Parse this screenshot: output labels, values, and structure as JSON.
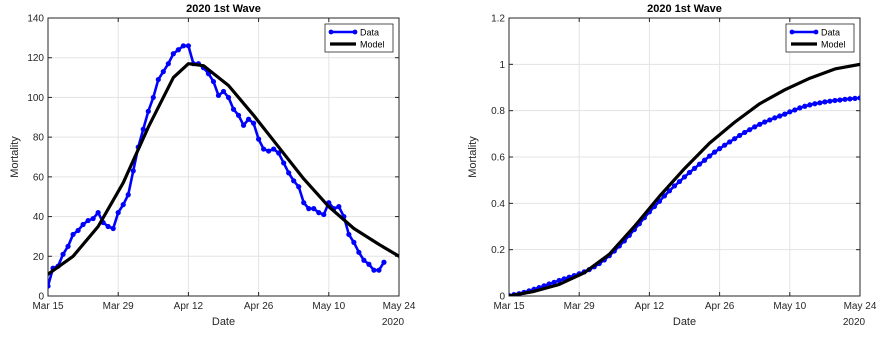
{
  "chart_data": [
    {
      "type": "line",
      "title": "2020 1st Wave",
      "xlabel": "Date",
      "ylabel": "Mortality",
      "x_domain": [
        "2020-03-15",
        "2020-05-24"
      ],
      "x_ticks": [
        {
          "date": "2020-03-15",
          "label": "Mar 15"
        },
        {
          "date": "2020-03-29",
          "label": "Mar 29"
        },
        {
          "date": "2020-04-12",
          "label": "Apr 12"
        },
        {
          "date": "2020-04-26",
          "label": "Apr 26"
        },
        {
          "date": "2020-05-10",
          "label": "May 10"
        },
        {
          "date": "2020-05-24",
          "label": "May 24"
        }
      ],
      "x_secondary_label": "2020",
      "ylim": [
        0,
        140
      ],
      "y_ticks": [
        0,
        20,
        40,
        60,
        80,
        100,
        120,
        140
      ],
      "y_tick_labels": [
        "0",
        "20",
        "40",
        "60",
        "80",
        "100",
        "120",
        "140"
      ],
      "grid": true,
      "legend": "top-right",
      "series": [
        {
          "name": "Data",
          "color": "#0000ff",
          "marker": "circle",
          "x": [
            "2020-03-15",
            "2020-03-16",
            "2020-03-17",
            "2020-03-18",
            "2020-03-19",
            "2020-03-20",
            "2020-03-21",
            "2020-03-22",
            "2020-03-23",
            "2020-03-24",
            "2020-03-25",
            "2020-03-26",
            "2020-03-27",
            "2020-03-28",
            "2020-03-29",
            "2020-03-30",
            "2020-03-31",
            "2020-04-01",
            "2020-04-02",
            "2020-04-03",
            "2020-04-04",
            "2020-04-05",
            "2020-04-06",
            "2020-04-07",
            "2020-04-08",
            "2020-04-09",
            "2020-04-10",
            "2020-04-11",
            "2020-04-12",
            "2020-04-13",
            "2020-04-14",
            "2020-04-15",
            "2020-04-16",
            "2020-04-17",
            "2020-04-18",
            "2020-04-19",
            "2020-04-20",
            "2020-04-21",
            "2020-04-22",
            "2020-04-23",
            "2020-04-24",
            "2020-04-25",
            "2020-04-26",
            "2020-04-27",
            "2020-04-28",
            "2020-04-29",
            "2020-04-30",
            "2020-05-01",
            "2020-05-02",
            "2020-05-03",
            "2020-05-04",
            "2020-05-05",
            "2020-05-06",
            "2020-05-07",
            "2020-05-08",
            "2020-05-09",
            "2020-05-10",
            "2020-05-11",
            "2020-05-12",
            "2020-05-13",
            "2020-05-14",
            "2020-05-15",
            "2020-05-16",
            "2020-05-17",
            "2020-05-18",
            "2020-05-19",
            "2020-05-20",
            "2020-05-21",
            "2020-05-22",
            "2020-05-23",
            "2020-05-24"
          ],
          "values": [
            5,
            14,
            15,
            21,
            25,
            31,
            33,
            36,
            38,
            39,
            42,
            37,
            35,
            34,
            42,
            46,
            51,
            63,
            75,
            84,
            93,
            100,
            109,
            113,
            117,
            122,
            124,
            126,
            126,
            117,
            117,
            115,
            112,
            108,
            101,
            103,
            100,
            94,
            91,
            86,
            89,
            87,
            79,
            74,
            73,
            74,
            72,
            67,
            62,
            58,
            55,
            47,
            44,
            44,
            42,
            41,
            47,
            44,
            45,
            40,
            31,
            27,
            22,
            18,
            16,
            13,
            13,
            17,
            null,
            null,
            null
          ]
        },
        {
          "name": "Model",
          "color": "#000000",
          "x": [
            "2020-03-15",
            "2020-03-20",
            "2020-03-25",
            "2020-03-30",
            "2020-04-04",
            "2020-04-09",
            "2020-04-12",
            "2020-04-15",
            "2020-04-20",
            "2020-04-25",
            "2020-04-30",
            "2020-05-05",
            "2020-05-10",
            "2020-05-15",
            "2020-05-20",
            "2020-05-24"
          ],
          "values": [
            11,
            20,
            35,
            57,
            85,
            110,
            117,
            116,
            106,
            91,
            75,
            59,
            45,
            34,
            26,
            20
          ]
        }
      ]
    },
    {
      "type": "line",
      "title": "2020 1st Wave",
      "xlabel": "Date",
      "ylabel": "Mortality",
      "x_domain": [
        "2020-03-15",
        "2020-05-24"
      ],
      "x_ticks": [
        {
          "date": "2020-03-15",
          "label": "Mar 15"
        },
        {
          "date": "2020-03-29",
          "label": "Mar 29"
        },
        {
          "date": "2020-04-12",
          "label": "Apr 12"
        },
        {
          "date": "2020-04-26",
          "label": "Apr 26"
        },
        {
          "date": "2020-05-10",
          "label": "May 10"
        },
        {
          "date": "2020-05-24",
          "label": "May 24"
        }
      ],
      "x_secondary_label": "2020",
      "ylim": [
        0,
        1.2
      ],
      "y_ticks": [
        0,
        0.2,
        0.4,
        0.6,
        0.8,
        1,
        1.2
      ],
      "y_tick_labels": [
        "0",
        "0.2",
        "0.4",
        "0.6",
        "0.8",
        "1",
        "1.2"
      ],
      "grid": true,
      "legend": "top-right",
      "series": [
        {
          "name": "Data",
          "color": "#0000ff",
          "marker": "circle",
          "x": [
            "2020-03-15",
            "2020-03-16",
            "2020-03-17",
            "2020-03-18",
            "2020-03-19",
            "2020-03-20",
            "2020-03-21",
            "2020-03-22",
            "2020-03-23",
            "2020-03-24",
            "2020-03-25",
            "2020-03-26",
            "2020-03-27",
            "2020-03-28",
            "2020-03-29",
            "2020-03-30",
            "2020-03-31",
            "2020-04-01",
            "2020-04-02",
            "2020-04-03",
            "2020-04-04",
            "2020-04-05",
            "2020-04-06",
            "2020-04-07",
            "2020-04-08",
            "2020-04-09",
            "2020-04-10",
            "2020-04-11",
            "2020-04-12",
            "2020-04-13",
            "2020-04-14",
            "2020-04-15",
            "2020-04-16",
            "2020-04-17",
            "2020-04-18",
            "2020-04-19",
            "2020-04-20",
            "2020-04-21",
            "2020-04-22",
            "2020-04-23",
            "2020-04-24",
            "2020-04-25",
            "2020-04-26",
            "2020-04-27",
            "2020-04-28",
            "2020-04-29",
            "2020-04-30",
            "2020-05-01",
            "2020-05-02",
            "2020-05-03",
            "2020-05-04",
            "2020-05-05",
            "2020-05-06",
            "2020-05-07",
            "2020-05-08",
            "2020-05-09",
            "2020-05-10",
            "2020-05-11",
            "2020-05-12",
            "2020-05-13",
            "2020-05-14",
            "2020-05-15",
            "2020-05-16",
            "2020-05-17",
            "2020-05-18",
            "2020-05-19",
            "2020-05-20",
            "2020-05-21",
            "2020-05-22",
            "2020-05-23",
            "2020-05-24"
          ],
          "values": [
            0.002,
            0.006,
            0.01,
            0.016,
            0.022,
            0.029,
            0.036,
            0.044,
            0.052,
            0.059,
            0.067,
            0.074,
            0.081,
            0.088,
            0.096,
            0.104,
            0.114,
            0.126,
            0.14,
            0.156,
            0.174,
            0.194,
            0.216,
            0.238,
            0.262,
            0.287,
            0.312,
            0.338,
            0.363,
            0.386,
            0.409,
            0.432,
            0.454,
            0.475,
            0.494,
            0.514,
            0.533,
            0.551,
            0.569,
            0.586,
            0.604,
            0.621,
            0.636,
            0.651,
            0.665,
            0.679,
            0.693,
            0.706,
            0.718,
            0.73,
            0.741,
            0.751,
            0.76,
            0.769,
            0.777,
            0.785,
            0.795,
            0.803,
            0.812,
            0.819,
            0.825,
            0.83,
            0.834,
            0.838,
            0.841,
            0.844,
            0.846,
            0.849,
            0.851,
            0.853,
            0.855
          ]
        },
        {
          "name": "Model",
          "color": "#000000",
          "x": [
            "2020-03-15",
            "2020-03-20",
            "2020-03-25",
            "2020-03-30",
            "2020-04-04",
            "2020-04-09",
            "2020-04-14",
            "2020-04-19",
            "2020-04-24",
            "2020-04-29",
            "2020-05-04",
            "2020-05-09",
            "2020-05-14",
            "2020-05-19",
            "2020-05-24"
          ],
          "values": [
            0.0,
            0.02,
            0.05,
            0.1,
            0.18,
            0.3,
            0.43,
            0.55,
            0.66,
            0.75,
            0.83,
            0.89,
            0.94,
            0.98,
            1.0
          ]
        }
      ]
    }
  ]
}
